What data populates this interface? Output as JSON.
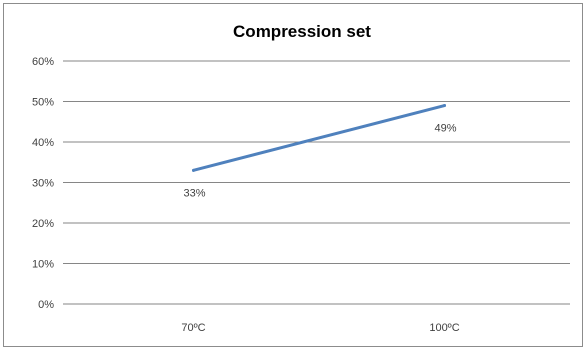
{
  "chart_data": {
    "type": "line",
    "title": "Compression set",
    "categories": [
      "70ºC",
      "100ºC"
    ],
    "series": [
      {
        "values": [
          33,
          49
        ],
        "data_labels": [
          "33%",
          "49%"
        ],
        "color": "#4f81bd"
      }
    ],
    "y_ticks": [
      "0%",
      "10%",
      "20%",
      "30%",
      "40%",
      "50%",
      "60%"
    ],
    "ylim": [
      0,
      60
    ],
    "y_unit": "%",
    "grid": true,
    "legend": "none",
    "gridline_color": "#868686",
    "axis_color": "#868686"
  }
}
